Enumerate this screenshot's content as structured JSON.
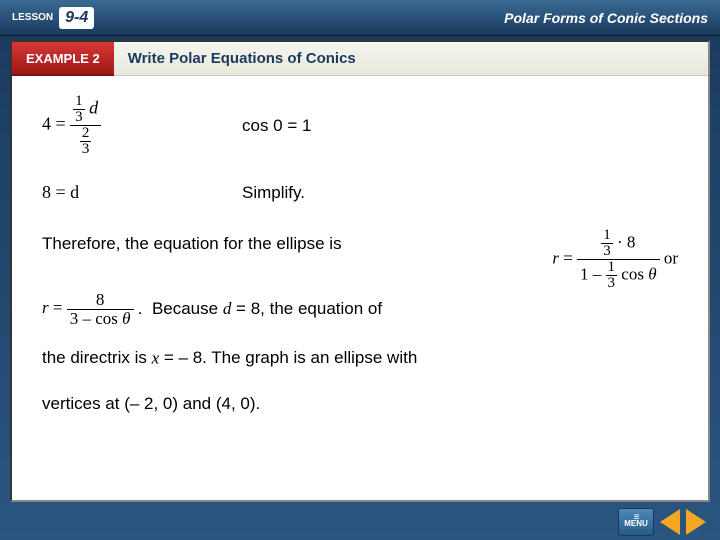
{
  "header": {
    "lesson_label": "LESSON",
    "lesson_number": "9-4",
    "topic": "Polar Forms of Conic Sections"
  },
  "example": {
    "tab": "EXAMPLE 2",
    "title": "Write Polar Equations of Conics"
  },
  "steps": {
    "step1": {
      "lhs_four": "4",
      "eq": "=",
      "numer_frac_n": "1",
      "numer_frac_d": "3",
      "numer_var": "d",
      "denom_frac_n": "2",
      "denom_frac_d": "3",
      "explanation": "cos 0 = 1"
    },
    "step2": {
      "expr": "8 = d",
      "explanation": "Simplify."
    }
  },
  "conclusion": {
    "line1_pre": "Therefore, the equation for the ellipse is",
    "right_r": "r",
    "right_eq": "=",
    "right_num_frac_n": "1",
    "right_num_frac_d": "3",
    "right_num_mul": "· 8",
    "right_den_one": "1 –",
    "right_den_frac_n": "1",
    "right_den_frac_d": "3",
    "right_den_cos": "cos",
    "right_den_theta": "θ",
    "right_or": "or",
    "line2_r": "r",
    "line2_eq": "=",
    "line2_num": "8",
    "line2_den_pre": "3 – cos",
    "line2_den_theta": "θ",
    "line2_period": ".",
    "line2_post": "Because ",
    "line2_d": "d",
    "line2_post2": " = 8, the equation of",
    "line3_pre": "the directrix is ",
    "line3_x": "x",
    "line3_mid": " = – 8. The graph is an ellipse with",
    "line4": "vertices at (– 2, 0) and (4, 0)."
  },
  "nav": {
    "menu": "MENU"
  },
  "colors": {
    "header_grad_top": "#3a6a94",
    "header_grad_bot": "#1a3a5c",
    "example_red_top": "#d63838",
    "example_red_bot": "#a01818",
    "arrow": "#f5a623",
    "bg_top": "#1a3a5c",
    "bg_bot": "#2a5580"
  }
}
